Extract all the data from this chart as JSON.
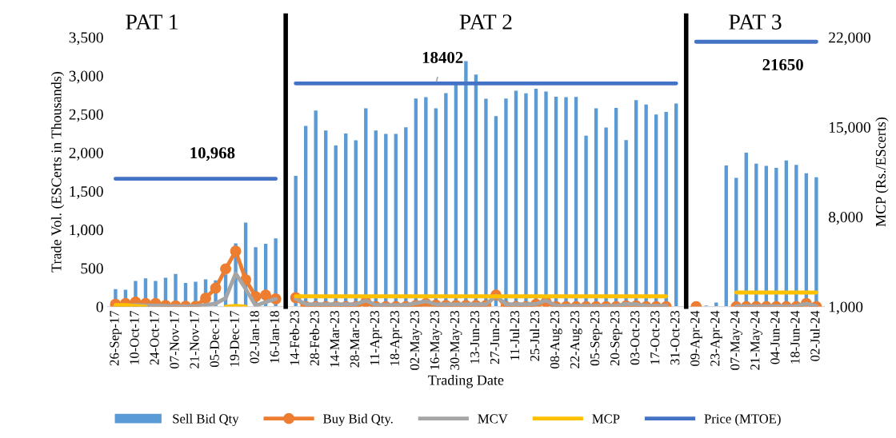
{
  "chart_data": {
    "type": "bar",
    "xlabel": "Trading Date",
    "ylabel": "Trade Vol. (ESCerts in Thousands)",
    "y2label": "MCP (Rs./EScerts)",
    "categories": [
      "26-Sep-17",
      null,
      "10-Oct-17",
      null,
      "24-Oct-17",
      null,
      "07-Nov-17",
      null,
      "21-Nov-17",
      null,
      "05-Dec-17",
      null,
      "19-Dec-17",
      null,
      "02-Jan-18",
      null,
      "16-Jan-18",
      null,
      "14-Feb-23",
      null,
      "28-Feb-23",
      null,
      "14-Mar-23",
      null,
      "28-Mar-23",
      null,
      "11-Apr-23",
      null,
      "18-Apr-23",
      null,
      "02-May-23",
      null,
      "16-May-23",
      null,
      "30-May-23",
      null,
      "13-Jun-23",
      null,
      "27-Jun-23",
      null,
      "11-Jul-23",
      null,
      "25-Jul-23",
      null,
      "08-Aug-23",
      null,
      "22-Aug-23",
      null,
      "05-Sep-23",
      null,
      "20-Sep-23",
      null,
      "03-Oct-23",
      null,
      "17-Oct-23",
      null,
      "31-Oct-23",
      null,
      "09-Apr-24",
      null,
      "23-Apr-24",
      null,
      "07-May-24",
      null,
      "21-May-24",
      null,
      "04-Jun-24",
      null,
      "18-Jun-24",
      null,
      "02-Jul-24"
    ],
    "series": [
      {
        "name": "Sell Bid Qty",
        "color": "#5b9bd5",
        "values": [
          226,
          219,
          334,
          367,
          334,
          374,
          425,
          307,
          324,
          354,
          341,
          418,
          822,
          1092,
          772,
          816,
          887,
          null,
          1700,
          2347,
          2549,
          2289,
          2094,
          2249,
          2162,
          2576,
          2289,
          2243,
          2243,
          2330,
          2704,
          2721,
          2576,
          2775,
          2900,
          3190,
          3015,
          2700,
          2475,
          2704,
          2806,
          2772,
          2830,
          2795,
          2728,
          2721,
          2724,
          2222,
          2576,
          2327,
          2583,
          2165,
          2684,
          2627,
          2496,
          2529,
          2640,
          null,
          null,
          13,
          54,
          1834,
          1672,
          2000,
          1858,
          1828,
          1804,
          1899,
          1841,
          1733,
          1682
        ]
      },
      {
        "name": "Buy Bid Qty.",
        "type": "line",
        "color": "#ed7d31",
        "marker": "circle",
        "values": [
          30,
          40,
          60,
          40,
          40,
          15,
          10,
          5,
          5,
          110,
          240,
          490,
          720,
          350,
          130,
          150,
          100,
          null,
          115,
          0,
          0,
          0,
          0,
          0,
          0,
          60,
          0,
          0,
          0,
          0,
          15,
          40,
          20,
          15,
          15,
          15,
          15,
          15,
          150,
          0,
          0,
          0,
          30,
          60,
          0,
          0,
          0,
          0,
          0,
          0,
          0,
          10,
          10,
          0,
          0,
          0,
          null,
          null,
          0,
          null,
          null,
          null,
          0,
          0,
          0,
          0,
          0,
          0,
          0,
          40,
          0
        ]
      },
      {
        "name": "MCV",
        "type": "line",
        "color": "#a5a5a5",
        "values": [
          15,
          15,
          20,
          15,
          15,
          10,
          5,
          5,
          5,
          20,
          40,
          110,
          430,
          230,
          10,
          60,
          100,
          null,
          100,
          30,
          30,
          30,
          30,
          30,
          30,
          80,
          20,
          20,
          20,
          20,
          45,
          70,
          30,
          30,
          30,
          30,
          30,
          30,
          140,
          30,
          30,
          30,
          35,
          80,
          10,
          10,
          10,
          10,
          10,
          10,
          10,
          35,
          30,
          10,
          10,
          10,
          null,
          null,
          null,
          null,
          null,
          null,
          5,
          5,
          5,
          5,
          5,
          5,
          5,
          40,
          5
        ]
      },
      {
        "name": "MCP",
        "type": "line",
        "axis": "y2",
        "color": "#ffc000",
        "values": [
          1120,
          1120,
          1050,
          1000,
          null,
          null,
          null,
          null,
          null,
          null,
          null,
          1000,
          1060,
          1000,
          null,
          null,
          null,
          null,
          1800,
          1800,
          1800,
          1800,
          1800,
          1800,
          1800,
          1800,
          1800,
          1800,
          1800,
          1800,
          1800,
          1800,
          1800,
          1800,
          1800,
          1800,
          1800,
          1800,
          1800,
          1800,
          1800,
          1800,
          1800,
          1800,
          1800,
          1800,
          1800,
          1800,
          1800,
          1800,
          1800,
          1800,
          1800,
          1800,
          1800,
          1800,
          null,
          null,
          null,
          null,
          null,
          null,
          2100,
          2100,
          2100,
          2100,
          2100,
          2100,
          2100,
          2100,
          2100
        ]
      },
      {
        "name": "Price (MTOE)",
        "type": "line",
        "axis": "y2",
        "color": "#4472c4",
        "values": [
          10968,
          10968,
          10968,
          10968,
          10968,
          10968,
          10968,
          10968,
          10968,
          10968,
          10968,
          10968,
          10968,
          10968,
          10968,
          10968,
          10968,
          null,
          18402,
          18402,
          18402,
          18402,
          18402,
          18402,
          18402,
          18402,
          18402,
          18402,
          18402,
          18402,
          18402,
          18402,
          18402,
          18402,
          18402,
          18402,
          18402,
          18402,
          18402,
          18402,
          18402,
          18402,
          18402,
          18402,
          18402,
          18402,
          18402,
          18402,
          18402,
          18402,
          18402,
          18402,
          18402,
          18402,
          18402,
          18402,
          18402,
          null,
          21650,
          21650,
          21650,
          21650,
          21650,
          21650,
          21650,
          21650,
          21650,
          21650,
          21650,
          21650,
          21650
        ],
        "value_labels": [
          null,
          null,
          null,
          null,
          null,
          null,
          null,
          null,
          null,
          "10,968",
          null,
          null,
          null,
          null,
          null,
          null,
          null,
          null,
          null,
          null,
          null,
          null,
          null,
          null,
          null,
          null,
          null,
          null,
          null,
          null,
          null,
          null,
          "18402",
          null,
          null,
          null,
          null,
          null,
          null,
          null,
          null,
          null,
          null,
          null,
          null,
          null,
          null,
          null,
          null,
          null,
          null,
          null,
          null,
          null,
          null,
          null,
          null,
          null,
          null,
          null,
          null,
          null,
          null,
          null,
          null,
          null,
          "21650",
          null,
          null,
          null,
          null
        ]
      }
    ],
    "ylim": [
      0,
      3500
    ],
    "yticks": [
      {
        "value": 0,
        "label": "0"
      },
      {
        "value": 500,
        "label": "500"
      },
      {
        "value": 1000,
        "label": "1,000"
      },
      {
        "value": 1500,
        "label": "1,500"
      },
      {
        "value": 2000,
        "label": "2,000"
      },
      {
        "value": 2500,
        "label": "2,500"
      },
      {
        "value": 3000,
        "label": "3,000"
      },
      {
        "value": 3500,
        "label": "3,500"
      }
    ],
    "y2lim": [
      1000,
      22000
    ],
    "y2ticks": [
      {
        "value": 1000,
        "label": "1,000"
      },
      {
        "value": 8000,
        "label": "8,000"
      },
      {
        "value": 15000,
        "label": "15,000"
      },
      {
        "value": 22000,
        "label": "22,000"
      }
    ],
    "annotations": [
      "PAT 1",
      "PAT 2",
      "PAT 3"
    ],
    "grid": false,
    "legend": "bottom"
  }
}
